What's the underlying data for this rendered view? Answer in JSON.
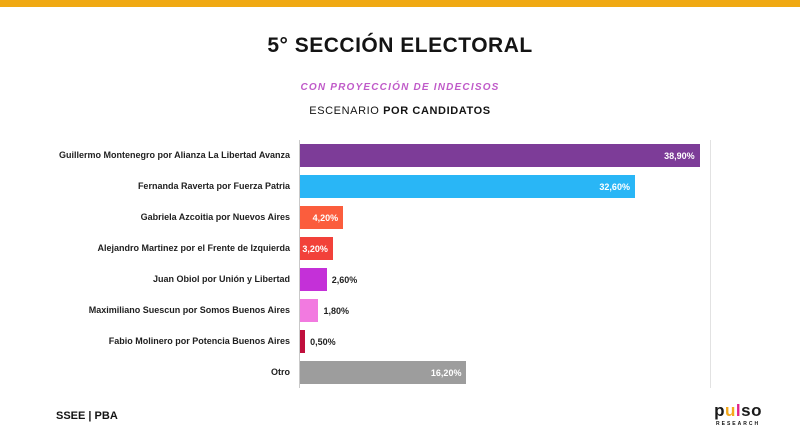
{
  "page": {
    "top_strip_color": "#F0A913",
    "footer_left": "SSEE | PBA"
  },
  "header": {
    "title": "5° SECCIÓN ELECTORAL",
    "subtitle": "CON PROYECCIÓN DE INDECISOS",
    "scenario_normal": "ESCENARIO ",
    "scenario_bold": "POR CANDIDATOS"
  },
  "chart_data": {
    "type": "bar",
    "orientation": "horizontal",
    "title": "5° SECCIÓN ELECTORAL",
    "subtitle": "CON PROYECCIÓN DE INDECISOS — ESCENARIO POR CANDIDATOS",
    "categories": [
      "Guillermo Montenegro por Alianza La Libertad Avanza",
      "Fernanda Raverta por Fuerza Patria",
      "Gabriela Azcoitia por Nuevos Aires",
      "Alejandro Martinez por el Frente de Izquierda",
      "Juan Obiol por Unión y Libertad",
      "Maximiliano Suescun por Somos Buenos Aires",
      "Fabio Molinero por Potencia Buenos Aires",
      "Otro"
    ],
    "values": [
      38.9,
      32.6,
      4.2,
      3.2,
      2.6,
      1.8,
      0.5,
      16.2
    ],
    "value_labels": [
      "38,90%",
      "32,60%",
      "4,20%",
      "3,20%",
      "2,60%",
      "1,80%",
      "0,50%",
      "16,20%"
    ],
    "colors": [
      "#7D3C98",
      "#29B6F6",
      "#FB5D3D",
      "#F2413A",
      "#C430D8",
      "#F27AE0",
      "#C00F3C",
      "#9D9D9D"
    ],
    "label_inside": [
      true,
      true,
      true,
      true,
      false,
      false,
      false,
      true
    ],
    "xlim": [
      0,
      40
    ],
    "xlabel": "",
    "ylabel": "",
    "grid": false,
    "legend": false
  },
  "logo": {
    "letters": [
      {
        "ch": "p",
        "color": "#1A1A1A"
      },
      {
        "ch": "u",
        "color": "#F5A81C"
      },
      {
        "ch": "l",
        "color": "#E0218A"
      },
      {
        "ch": "s",
        "color": "#1A1A1A"
      },
      {
        "ch": "o",
        "color": "#1A1A1A"
      }
    ],
    "sub": "RESEARCH"
  }
}
